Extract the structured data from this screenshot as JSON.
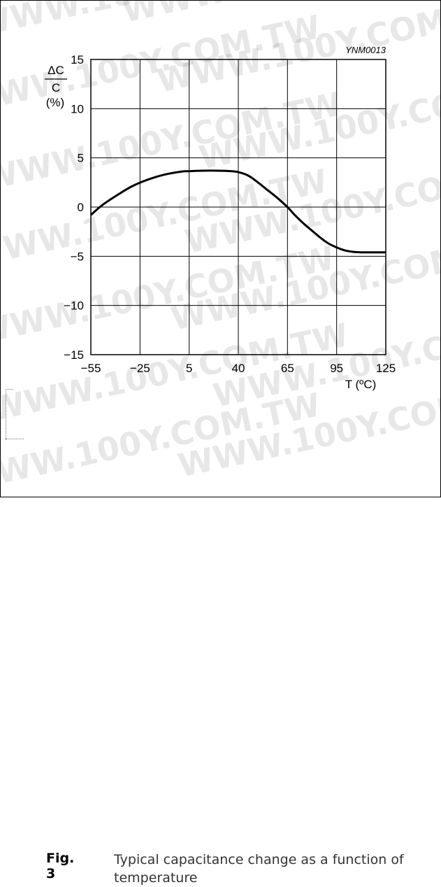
{
  "chart_data": {
    "type": "line",
    "reference": "YNM0013",
    "y_label_numerator": "ΔC",
    "y_label_denominator": "C",
    "y_label_unit": "(%)",
    "x_label": "T (ºC)",
    "xlim": [
      -55,
      125
    ],
    "ylim": [
      -15,
      15
    ],
    "x_ticks": [
      "−55",
      "−25",
      "5",
      "40",
      "65",
      "95",
      "125"
    ],
    "x_tick_values": [
      -55,
      -25,
      5,
      40,
      65,
      95,
      125
    ],
    "y_ticks": [
      "15",
      "10",
      "5",
      "0",
      "−5",
      "−10",
      "−15"
    ],
    "y_tick_values": [
      15,
      10,
      5,
      0,
      -5,
      -10,
      -15
    ],
    "grid": true,
    "series": [
      {
        "x": [
          -55,
          -48,
          -40,
          -30,
          -20,
          -10,
          0,
          5,
          15,
          25,
          35,
          40,
          45,
          50,
          55,
          60,
          65,
          70,
          75,
          80,
          85,
          90,
          95,
          100,
          105,
          110,
          115,
          125
        ],
        "y": [
          -0.8,
          0.2,
          1.1,
          2.1,
          2.8,
          3.3,
          3.6,
          3.65,
          3.7,
          3.7,
          3.65,
          3.55,
          3.2,
          2.5,
          1.7,
          0.9,
          0.0,
          -0.9,
          -1.7,
          -2.4,
          -3.1,
          -3.7,
          -4.1,
          -4.4,
          -4.55,
          -4.6,
          -4.6,
          -4.6
        ]
      }
    ]
  },
  "caption": {
    "label": "Fig. 3",
    "text": "Typical capacitance change as a function of temperature"
  },
  "watermark": "WWW.100Y.COM.TW"
}
